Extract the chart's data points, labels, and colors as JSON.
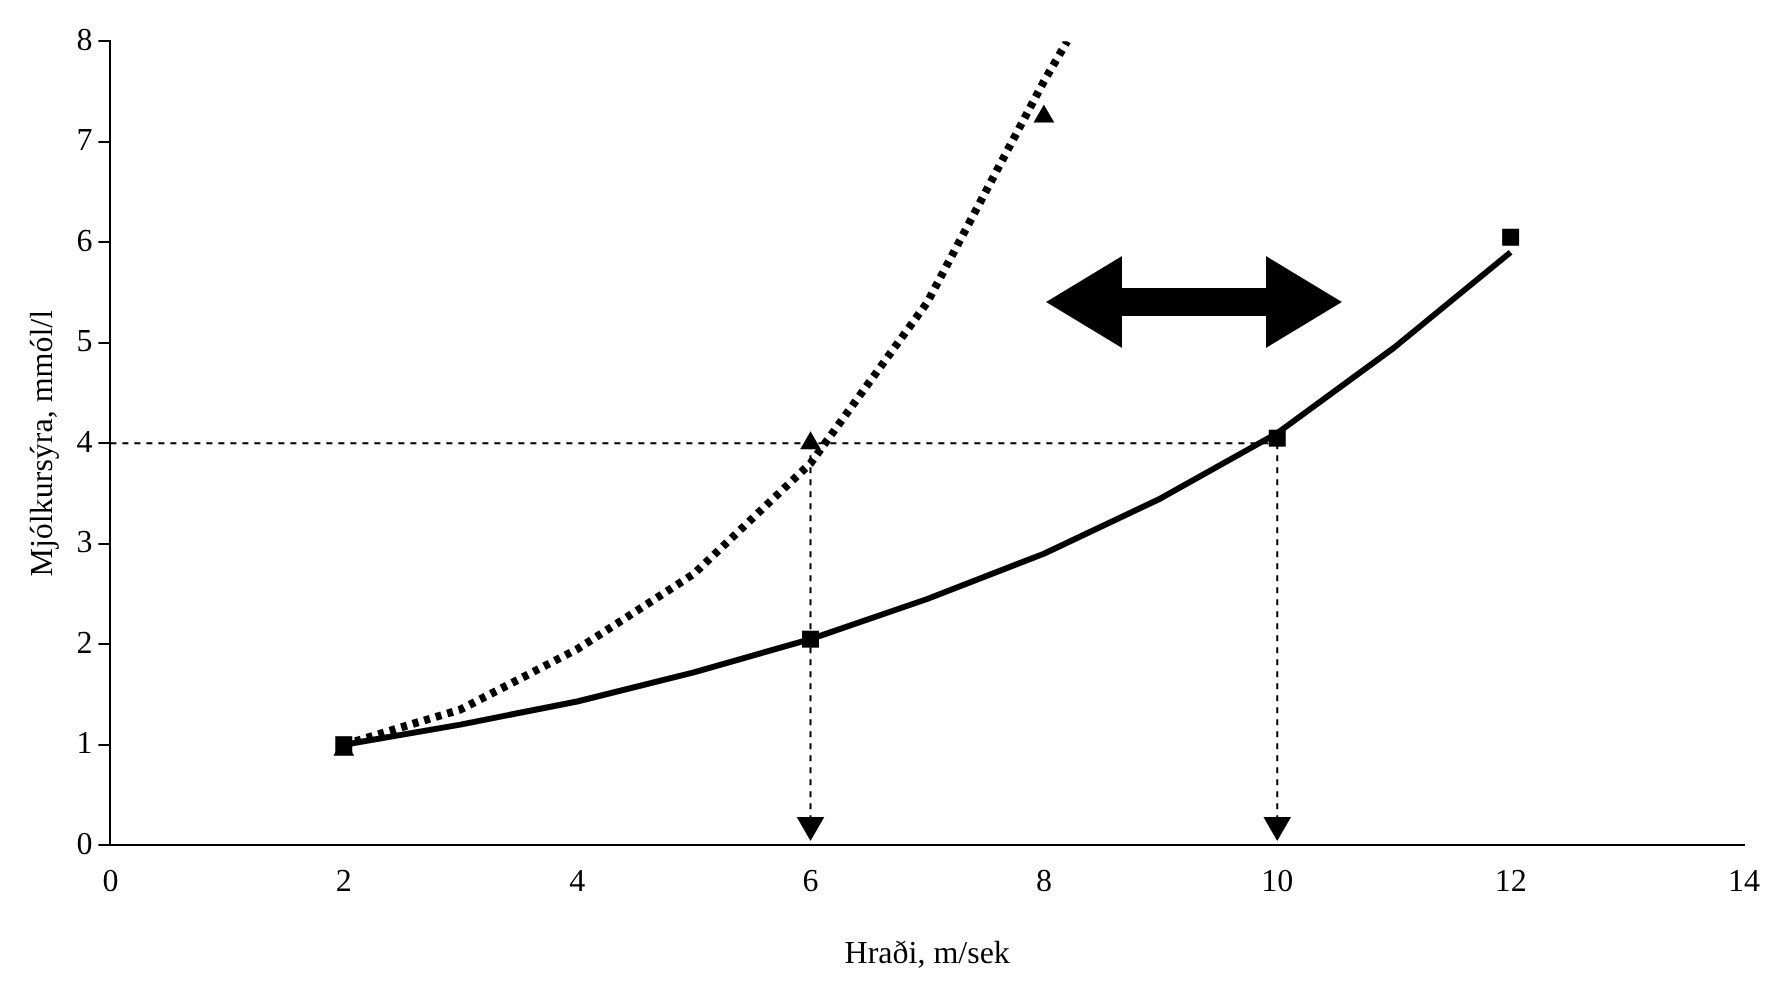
{
  "chart_data": {
    "type": "scatter",
    "xlabel": "Hraði, m/sek",
    "ylabel": "Mjólkursýra, mmól/l",
    "xlim": [
      0,
      14
    ],
    "xticks": [
      0,
      2,
      4,
      6,
      8,
      10,
      12,
      14
    ],
    "ylim": [
      0,
      8
    ],
    "yticks": [
      0,
      1,
      2,
      3,
      4,
      5,
      6,
      7,
      8
    ],
    "grid": false,
    "legend": false,
    "series": [
      {
        "type": "line",
        "color": "#000000",
        "line_style": "dotted",
        "marker": "none",
        "x": [
          0,
          10
        ],
        "values": [
          4,
          4
        ]
      },
      {
        "type": "line",
        "color": "#000000",
        "line_style": "dotted",
        "marker": "triangle",
        "x": [
          6,
          6
        ],
        "values": [
          4,
          0.2
        ]
      },
      {
        "type": "line",
        "color": "#000000",
        "line_style": "dotted",
        "marker": "triangle",
        "x": [
          10,
          10
        ],
        "values": [
          4,
          0.2
        ]
      },
      {
        "type": "line",
        "color": "#000000",
        "line_style": "solid",
        "marker": "none",
        "x": [
          2,
          3,
          4,
          5,
          6,
          7,
          8,
          9,
          10,
          11,
          12
        ],
        "values": [
          1.0,
          1.2,
          1.43,
          1.72,
          2.05,
          2.45,
          2.9,
          3.45,
          4.1,
          4.95,
          5.9
        ]
      },
      {
        "type": "line",
        "color": "#000000",
        "line_style": "dotted",
        "marker": "none",
        "x": [
          2,
          3,
          4,
          5,
          6,
          7,
          8,
          8.2
        ],
        "values": [
          1.0,
          1.35,
          1.95,
          2.7,
          3.8,
          5.4,
          7.6,
          8.0
        ]
      },
      {
        "type": "scatter",
        "color": "#000000",
        "marker": "square",
        "x": [
          2,
          6,
          10,
          12
        ],
        "values": [
          1.0,
          2.05,
          4.05,
          6.05
        ]
      },
      {
        "type": "scatter",
        "color": "#000000",
        "marker": "triangle",
        "x": [
          2,
          6,
          8
        ],
        "values": [
          0.95,
          4.0,
          7.25
        ]
      }
    ]
  }
}
